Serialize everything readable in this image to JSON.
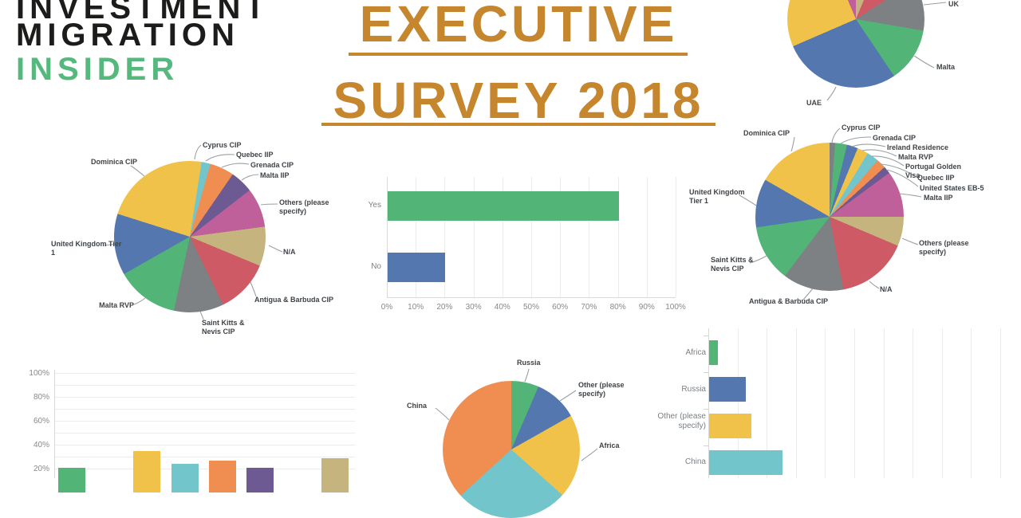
{
  "logo": {
    "line1": "INVESTMENT",
    "line2": "MIGRATION",
    "line3": "INSIDER"
  },
  "title": {
    "line1": "EXECUTIVE",
    "line2": "SURVEY 2018"
  },
  "colors": {
    "logo_black": "#1c1c1a",
    "logo_green": "#55b97d",
    "title_orange": "#c5862e",
    "yellow": "#f1c24a",
    "blue": "#5377ae",
    "green": "#52b476",
    "teal": "#72c5cb",
    "orange": "#f08e52",
    "purple": "#6d5a92",
    "pink": "#c0609a",
    "tan": "#c5b47e",
    "red": "#cd5a64",
    "gray": "#7d8184"
  },
  "chart_data": [
    {
      "type": "pie",
      "name": "top-right-pie-partially-cropped",
      "start_deg": 0,
      "slices": [
        {
          "label": "",
          "color": "tan",
          "pct": 6.3
        },
        {
          "label": "",
          "color": "red",
          "pct": 9.6
        },
        {
          "label": "UK",
          "color": "gray",
          "pct": 11.8
        },
        {
          "label": "Malta",
          "color": "green",
          "pct": 12.9
        },
        {
          "label": "UAE",
          "color": "blue",
          "pct": 27.9
        },
        {
          "label": "",
          "color": "yellow",
          "pct": 25.1
        },
        {
          "label": "",
          "color": "pink",
          "pct": 6.4
        }
      ]
    },
    {
      "type": "pie",
      "name": "left-pie-programs",
      "start_deg": 1,
      "slices": [
        {
          "label": "Cyprus CIP",
          "color": "yellow",
          "pct": 2.2
        },
        {
          "label": "Quebec IIP",
          "color": "teal",
          "pct": 1.9
        },
        {
          "label": "Grenada CIP",
          "color": "orange",
          "pct": 5.2
        },
        {
          "label": "Malta IIP",
          "color": "purple",
          "pct": 4.9
        },
        {
          "label": "Others (please specify)",
          "color": "pink",
          "pct": 8.4
        },
        {
          "label": "N/A",
          "color": "tan",
          "pct": 8.4
        },
        {
          "label": "Antigua & Barbuda CIP",
          "color": "red",
          "pct": 11.5
        },
        {
          "label": "Saint Kitts & Nevis CIP",
          "color": "gray",
          "pct": 10.6
        },
        {
          "label": "Malta RVP",
          "color": "green",
          "pct": 13.4
        },
        {
          "label": "United Kingdom Tier 1",
          "color": "blue",
          "pct": 13.1
        },
        {
          "label": "Dominica CIP",
          "color": "yellow",
          "pct": 20.4
        }
      ]
    },
    {
      "type": "bar",
      "name": "center-yes-no-bar",
      "orientation": "horizontal",
      "categories": [
        "Yes",
        "No"
      ],
      "values": [
        80,
        20
      ],
      "bar_colors": [
        "green",
        "blue"
      ],
      "xticks": [
        "0%",
        "10%",
        "20%",
        "30%",
        "40%",
        "50%",
        "60%",
        "70%",
        "80%",
        "90%",
        "100%"
      ],
      "xlim": [
        0,
        100
      ]
    },
    {
      "type": "pie",
      "name": "right-pie-programs",
      "start_deg": 0,
      "slices": [
        {
          "label": "Cyprus CIP",
          "color": "gray",
          "pct": 1.2
        },
        {
          "label": "Grenada CIP",
          "color": "green",
          "pct": 2.6
        },
        {
          "label": "Ireland Residence",
          "color": "blue",
          "pct": 2.4
        },
        {
          "label": "Malta RVP",
          "color": "yellow",
          "pct": 2.4
        },
        {
          "label": "Portugal Golden Visa",
          "color": "teal",
          "pct": 2.6
        },
        {
          "label": "Quebec IIP",
          "color": "orange",
          "pct": 2.1
        },
        {
          "label": "United States EB-5",
          "color": "purple",
          "pct": 1.6
        },
        {
          "label": "Malta IIP",
          "color": "pink",
          "pct": 10.1
        },
        {
          "label": "Others (please specify)",
          "color": "tan",
          "pct": 6.4
        },
        {
          "label": "N/A",
          "color": "red",
          "pct": 15.6
        },
        {
          "label": "Antigua & Barbuda CIP",
          "color": "gray",
          "pct": 13.3
        },
        {
          "label": "Saint Kitts & Nevis CIP",
          "color": "green",
          "pct": 12.4
        },
        {
          "label": "United Kingdom Tier 1",
          "color": "blue",
          "pct": 10.6
        },
        {
          "label": "Dominica CIP",
          "color": "yellow",
          "pct": 16.7
        }
      ]
    },
    {
      "type": "bar",
      "name": "bottom-left-vertical-bar-partially-cropped",
      "orientation": "vertical",
      "categories": [
        "",
        "",
        "",
        "",
        "",
        "",
        "",
        ""
      ],
      "values": [
        21,
        null,
        35,
        24,
        27,
        21,
        null,
        29
      ],
      "bar_colors": [
        "green",
        "blue",
        "yellow",
        "teal",
        "orange",
        "purple",
        "pink",
        "tan"
      ],
      "yticks": [
        "20%",
        "40%",
        "60%",
        "80%",
        "100%"
      ],
      "ylim": [
        0,
        100
      ]
    },
    {
      "type": "pie",
      "name": "bottom-center-pie-regions-partially-cropped",
      "start_deg": 0,
      "slices": [
        {
          "label": "Russia",
          "color": "green",
          "pct": 6.5
        },
        {
          "label": "Other (please specify)",
          "color": "blue",
          "pct": 10.3
        },
        {
          "label": "Africa",
          "color": "yellow",
          "pct": 19.8
        },
        {
          "label": "",
          "color": "teal",
          "pct": 26.6
        },
        {
          "label": "China",
          "color": "orange",
          "pct": 36.8
        }
      ]
    },
    {
      "type": "bar",
      "name": "bottom-right-horizontal-bar-partially-cropped",
      "orientation": "horizontal",
      "categories": [
        "Africa",
        "Russia",
        "Other (please specify)",
        "China"
      ],
      "values": [
        3,
        12.5,
        14.5,
        25
      ],
      "bar_colors": [
        "green",
        "blue",
        "yellow",
        "teal"
      ],
      "xlim": [
        0,
        100
      ]
    }
  ]
}
